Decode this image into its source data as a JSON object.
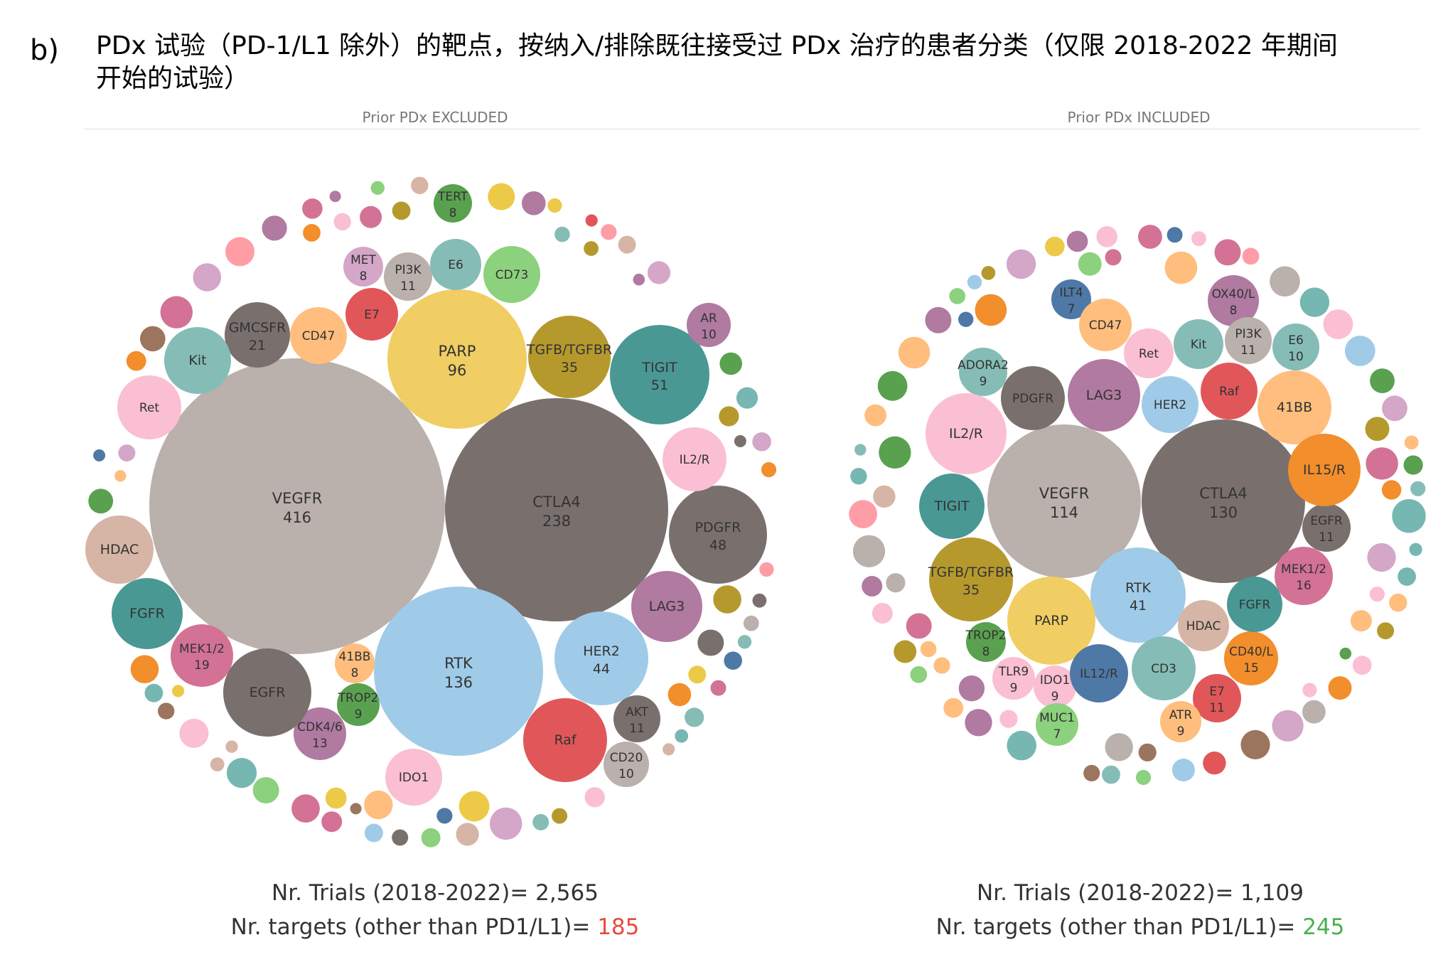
{
  "panel_letter": "b)",
  "title": "PDx 试验（PD-1/L1 除外）的靶点，按纳入/排除既往接受过 PDx 治疗的患者分类（仅限 2018-2022 年期间开始的试验）",
  "chart_data": [
    {
      "type": "bubble",
      "panel": "Prior PDx EXCLUDED",
      "trials_label": "Nr. Trials (2018-2022)= 2,565",
      "targets_label": "Nr. targets (other than PD1/L1)= ",
      "targets_value": "185",
      "targets_color": "#e74c3c",
      "bubbles": [
        {
          "label": "VEGFR",
          "value": "416",
          "color": "#bab0ac"
        },
        {
          "label": "CTLA4",
          "value": "238",
          "color": "#79706e"
        },
        {
          "label": "RTK",
          "value": "136",
          "color": "#a0cbe8"
        },
        {
          "label": "PARP",
          "value": "96",
          "color": "#f1ce63"
        },
        {
          "label": "TIGIT",
          "value": "51",
          "color": "#499894"
        },
        {
          "label": "PDGFR",
          "value": "48",
          "color": "#79706e"
        },
        {
          "label": "HER2",
          "value": "44",
          "color": "#a0cbe8"
        },
        {
          "label": "TGFB/TGFBR",
          "value": "35",
          "color": "#b6992d"
        },
        {
          "label": "GMCSFR",
          "value": "21",
          "color": "#79706e"
        },
        {
          "label": "MEK1/2",
          "value": "19",
          "color": "#d37295"
        },
        {
          "label": "CDK4/6",
          "value": "13",
          "color": "#b07aa1"
        },
        {
          "label": "PI3K",
          "value": "11",
          "color": "#bab0ac"
        },
        {
          "label": "AKT",
          "value": "11",
          "color": "#79706e"
        },
        {
          "label": "AR",
          "value": "10",
          "color": "#b07aa1"
        },
        {
          "label": "CD20",
          "value": "10",
          "color": "#bab0ac"
        },
        {
          "label": "MET",
          "value": "8",
          "color": "#d4a6c8"
        },
        {
          "label": "TERT",
          "value": "8",
          "color": "#59a14f"
        },
        {
          "label": "41BB",
          "value": "8",
          "color": "#ffbe7d"
        },
        {
          "label": "TROP2",
          "value": "9",
          "color": "#59a14f"
        },
        {
          "label": "Raf",
          "value": "",
          "color": "#e15759"
        },
        {
          "label": "LAG3",
          "value": "",
          "color": "#b07aa1"
        },
        {
          "label": "IL2/R",
          "value": "",
          "color": "#fabfd2"
        },
        {
          "label": "EGFR",
          "value": "",
          "color": "#79706e"
        },
        {
          "label": "FGFR",
          "value": "",
          "color": "#499894"
        },
        {
          "label": "HDAC",
          "value": "",
          "color": "#d7b5a6"
        },
        {
          "label": "Ret",
          "value": "",
          "color": "#fabfd2"
        },
        {
          "label": "Kit",
          "value": "",
          "color": "#86bcb6"
        },
        {
          "label": "CD47",
          "value": "",
          "color": "#ffbe7d"
        },
        {
          "label": "E7",
          "value": "",
          "color": "#e15759"
        },
        {
          "label": "E6",
          "value": "",
          "color": "#86bcb6"
        },
        {
          "label": "CD73",
          "value": "",
          "color": "#8cd17d"
        },
        {
          "label": "IDO1",
          "value": "",
          "color": "#fabfd2"
        }
      ]
    },
    {
      "type": "bubble",
      "panel": "Prior PDx INCLUDED",
      "trials_label": "Nr. Trials (2018-2022)= 1,109",
      "targets_label": "Nr. targets (other than PD1/L1)= ",
      "targets_value": "245",
      "targets_color": "#4caf50",
      "bubbles": [
        {
          "label": "CTLA4",
          "value": "130",
          "color": "#79706e"
        },
        {
          "label": "VEGFR",
          "value": "114",
          "color": "#bab0ac"
        },
        {
          "label": "RTK",
          "value": "41",
          "color": "#a0cbe8"
        },
        {
          "label": "TGFB/TGFBR",
          "value": "35",
          "color": "#b6992d"
        },
        {
          "label": "MEK1/2",
          "value": "16",
          "color": "#d37295"
        },
        {
          "label": "CD40/L",
          "value": "15",
          "color": "#f28e2b"
        },
        {
          "label": "OX40/L",
          "value": "8",
          "color": "#b07aa1"
        },
        {
          "label": "EGFR",
          "value": "11",
          "color": "#79706e"
        },
        {
          "label": "PI3K",
          "value": "11",
          "color": "#bab0ac"
        },
        {
          "label": "E7",
          "value": "11",
          "color": "#e15759"
        },
        {
          "label": "E6",
          "value": "10",
          "color": "#86bcb6"
        },
        {
          "label": "ADORA2",
          "value": "9",
          "color": "#86bcb6"
        },
        {
          "label": "TLR9",
          "value": "9",
          "color": "#fabfd2"
        },
        {
          "label": "IDO1",
          "value": "9",
          "color": "#fabfd2"
        },
        {
          "label": "ATR",
          "value": "9",
          "color": "#ffbe7d"
        },
        {
          "label": "TROP2",
          "value": "8",
          "color": "#59a14f"
        },
        {
          "label": "ILT4",
          "value": "7",
          "color": "#4e79a7"
        },
        {
          "label": "MUC1",
          "value": "7",
          "color": "#8cd17d"
        },
        {
          "label": "PARP",
          "value": "",
          "color": "#f1ce63"
        },
        {
          "label": "TIGIT",
          "value": "",
          "color": "#499894"
        },
        {
          "label": "IL2/R",
          "value": "",
          "color": "#fabfd2"
        },
        {
          "label": "PDGFR",
          "value": "",
          "color": "#79706e"
        },
        {
          "label": "LAG3",
          "value": "",
          "color": "#b07aa1"
        },
        {
          "label": "HER2",
          "value": "",
          "color": "#a0cbe8"
        },
        {
          "label": "Raf",
          "value": "",
          "color": "#e15759"
        },
        {
          "label": "41BB",
          "value": "",
          "color": "#ffbe7d"
        },
        {
          "label": "IL15/R",
          "value": "",
          "color": "#f28e2b"
        },
        {
          "label": "FGFR",
          "value": "",
          "color": "#499894"
        },
        {
          "label": "HDAC",
          "value": "",
          "color": "#d7b5a6"
        },
        {
          "label": "IL12/R",
          "value": "",
          "color": "#4e79a7"
        },
        {
          "label": "CD3",
          "value": "",
          "color": "#86bcb6"
        },
        {
          "label": "CD47",
          "value": "",
          "color": "#ffbe7d"
        },
        {
          "label": "Ret",
          "value": "",
          "color": "#fabfd2"
        },
        {
          "label": "Kit",
          "value": "",
          "color": "#86bcb6"
        }
      ]
    }
  ]
}
